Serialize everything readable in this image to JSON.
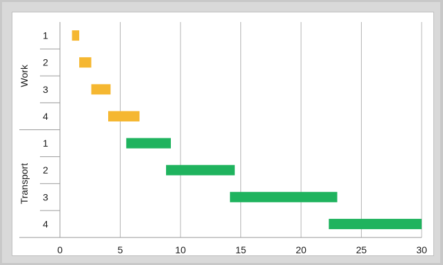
{
  "chart_data": {
    "type": "bar",
    "orientation": "horizontal",
    "subtype": "gantt",
    "title": "",
    "xlabel": "",
    "ylabel": "",
    "xlim": [
      0,
      30
    ],
    "xticks": [
      0,
      5,
      10,
      15,
      20,
      25,
      30
    ],
    "grid": "vertical",
    "legend": "none",
    "groups": [
      {
        "name": "Work",
        "color": "#f5b731",
        "tasks": [
          {
            "label": "1",
            "start": 1.0,
            "end": 1.6
          },
          {
            "label": "2",
            "start": 1.6,
            "end": 2.6
          },
          {
            "label": "3",
            "start": 2.6,
            "end": 4.2
          },
          {
            "label": "4",
            "start": 4.0,
            "end": 6.6
          }
        ]
      },
      {
        "name": "Transport",
        "color": "#1fb35e",
        "tasks": [
          {
            "label": "1",
            "start": 5.5,
            "end": 9.2
          },
          {
            "label": "2",
            "start": 8.8,
            "end": 14.5
          },
          {
            "label": "3",
            "start": 14.1,
            "end": 23.0
          },
          {
            "label": "4",
            "start": 22.3,
            "end": 30.0
          }
        ]
      }
    ]
  }
}
